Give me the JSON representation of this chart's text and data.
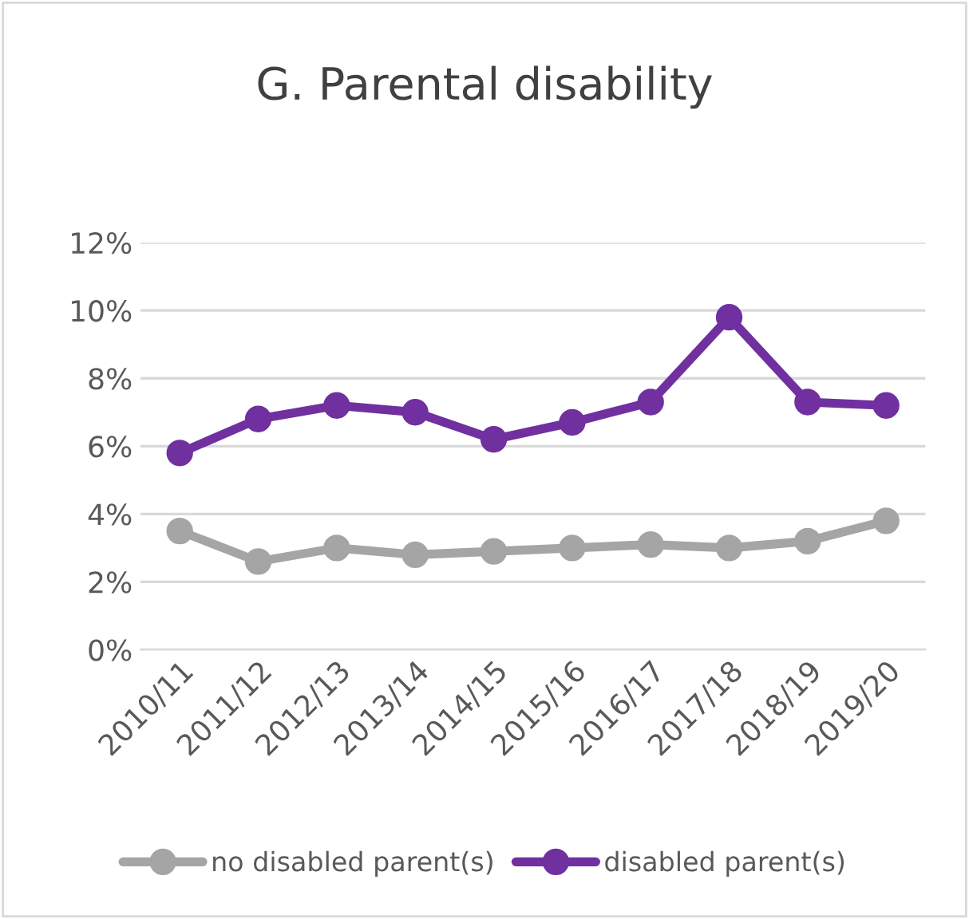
{
  "chart_data": {
    "type": "line",
    "title": "G. Parental disability",
    "categories": [
      "2010/11",
      "2011/12",
      "2012/13",
      "2013/14",
      "2014/15",
      "2015/16",
      "2016/17",
      "2017/18",
      "2018/19",
      "2019/20"
    ],
    "series": [
      {
        "name": "no disabled parent(s)",
        "color": "#a5a5a5",
        "values": [
          3.5,
          2.6,
          3.0,
          2.8,
          2.9,
          3.0,
          3.1,
          3.0,
          3.2,
          3.8
        ]
      },
      {
        "name": "disabled parent(s)",
        "color": "#7030a0",
        "values": [
          5.8,
          6.8,
          7.2,
          7.0,
          6.2,
          6.7,
          7.3,
          9.8,
          7.3,
          7.2
        ]
      }
    ],
    "ylim": [
      0,
      12
    ],
    "yticks": [
      {
        "value": 0,
        "label": "0%"
      },
      {
        "value": 2,
        "label": "2%"
      },
      {
        "value": 4,
        "label": "4%"
      },
      {
        "value": 6,
        "label": "6%"
      },
      {
        "value": 8,
        "label": "8%"
      },
      {
        "value": 10,
        "label": "10%"
      },
      {
        "value": 12,
        "label": "12%"
      }
    ],
    "grid": "y",
    "legend": "bottom",
    "marker": "circle",
    "line_style": "solid"
  }
}
